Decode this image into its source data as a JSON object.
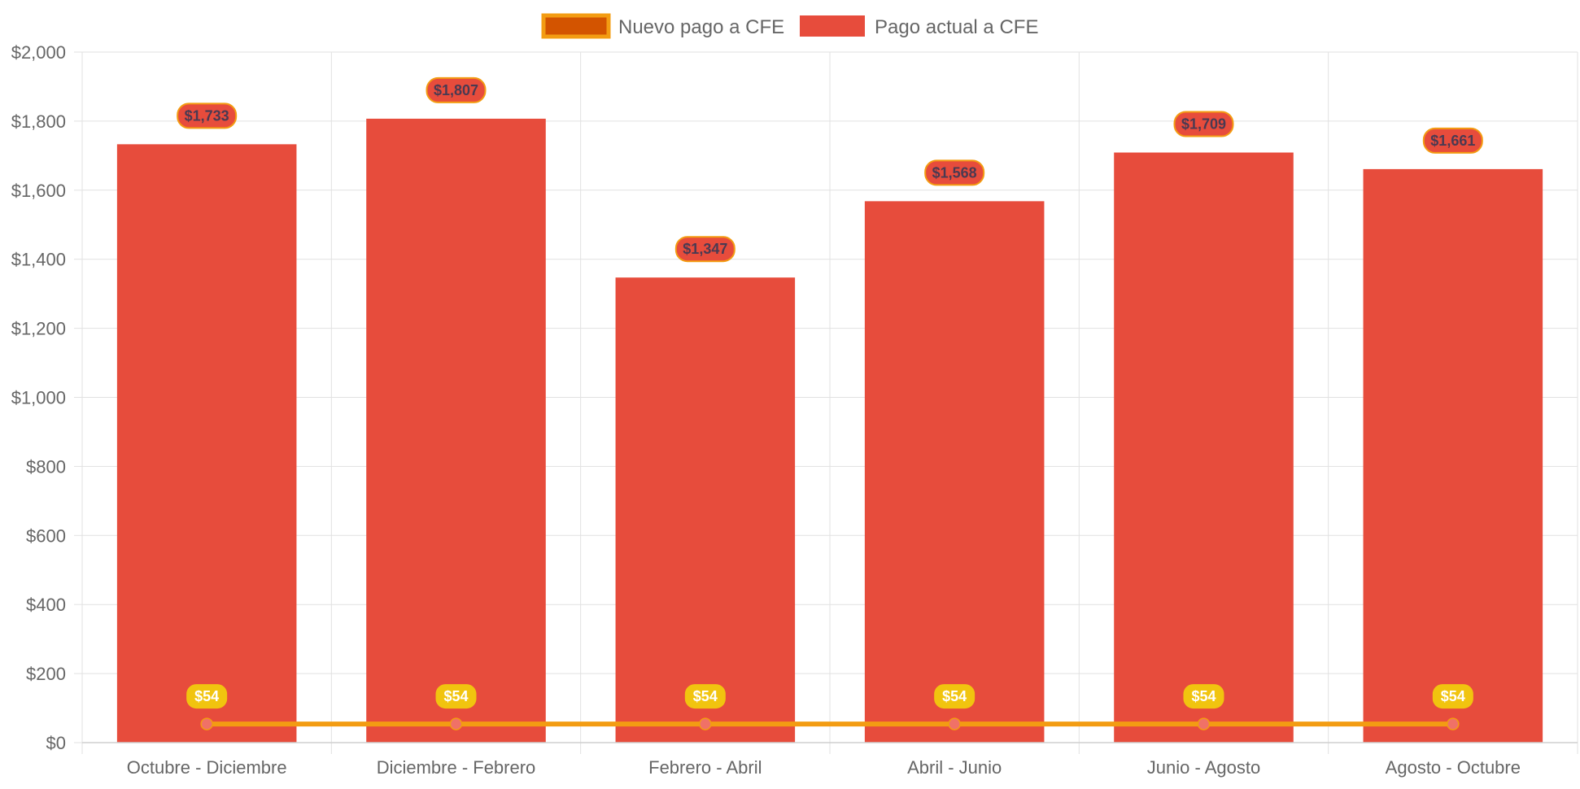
{
  "chart_data": {
    "type": "bar",
    "title": "",
    "xlabel": "",
    "ylabel": "",
    "categories": [
      "Octubre - Diciembre",
      "Diciembre - Febrero",
      "Febrero - Abril",
      "Abril - Junio",
      "Junio - Agosto",
      "Agosto - Octubre"
    ],
    "series": [
      {
        "name": "Nuevo pago a CFE",
        "type": "line",
        "values": [
          54,
          54,
          54,
          54,
          54,
          54
        ],
        "labels": [
          "$54",
          "$54",
          "$54",
          "$54",
          "$54",
          "$54"
        ],
        "color": "#f39c12",
        "point_color": "#f07167",
        "label_bg": "#f1c40f",
        "legend_fill": "#d35400"
      },
      {
        "name": "Pago actual a CFE",
        "type": "bar",
        "values": [
          1733,
          1807,
          1347,
          1568,
          1709,
          1661
        ],
        "labels": [
          "$1,733",
          "$1,807",
          "$1,347",
          "$1,568",
          "$1,709",
          "$1,661"
        ],
        "color": "#e74c3c",
        "label_border": "#f39c12"
      }
    ],
    "ylim": [
      0,
      2000
    ],
    "y_ticks": [
      0,
      200,
      400,
      600,
      800,
      1000,
      1200,
      1400,
      1600,
      1800,
      2000
    ],
    "y_tick_labels": [
      "$0",
      "$200",
      "$400",
      "$600",
      "$800",
      "$1,000",
      "$1,200",
      "$1,400",
      "$1,600",
      "$1,800",
      "$2,000"
    ],
    "grid": true,
    "legend_position": "top-center"
  }
}
